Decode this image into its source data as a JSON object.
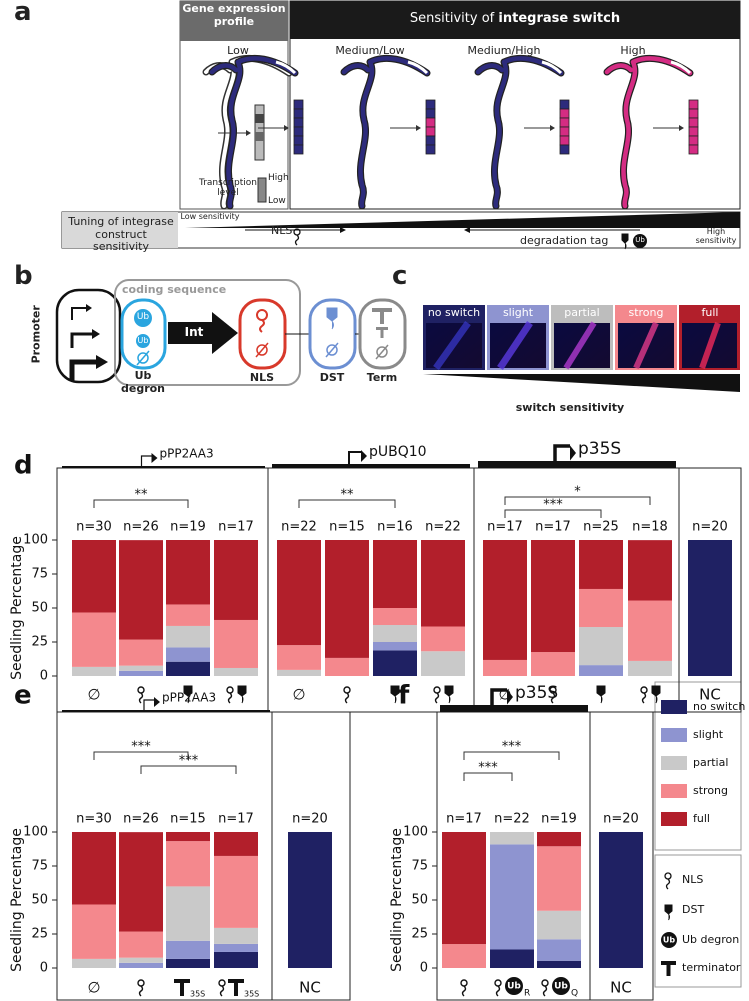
{
  "panel_a": {
    "label": "a",
    "expression_header": "Gene expression profile",
    "sensitivity_header_prefix": "Sensitivity of ",
    "sensitivity_header_bold": "integrase switch",
    "levels": [
      "Low",
      "Medium/Low",
      "Medium/High",
      "High"
    ],
    "transcription_label": "Transcription level",
    "scale_high": "High",
    "scale_low": "Low",
    "tuning_label": "Tuning of integrase construct sensitivity",
    "low_sensitivity": "Low sensitivity",
    "high_sensitivity": "High sensitivity",
    "nls": "NLS",
    "degradation_tag": "degradation tag",
    "ub": "Ub"
  },
  "panel_b": {
    "label": "b",
    "promoter": "Promoter",
    "coding_sequence": "coding sequence",
    "ub_1": "Ub",
    "ub_2": "Ub",
    "int": "Int",
    "ub_degron": "Ub degron",
    "nls": "NLS",
    "dst": "DST",
    "term": "Term"
  },
  "panel_c": {
    "label": "c",
    "classes": [
      "no switch",
      "slight",
      "partial",
      "strong",
      "full"
    ],
    "axis": "switch sensitivity"
  },
  "chart_data": [
    {
      "type": "bar",
      "stacked": true,
      "panel_label": "d",
      "y_label": "Seedling Percentage",
      "groups": [
        "pPP2AA3",
        "pUBQ10",
        "p35S"
      ],
      "categories": [
        "∅",
        null,
        null,
        null,
        "∅",
        null,
        null,
        null,
        "∅",
        null,
        null,
        null,
        "NC"
      ],
      "sample_sizes": [
        "n=30",
        "n=26",
        "n=19",
        "n=17",
        "n=22",
        "n=15",
        "n=16",
        "n=22",
        "n=17",
        "n=17",
        "n=25",
        "n=18",
        "n=20"
      ],
      "significance": [
        "**",
        "**",
        "*",
        "***"
      ],
      "ylim": [
        0,
        100
      ],
      "yticks": [
        0,
        25,
        50,
        75,
        100
      ],
      "series": [
        {
          "color": "#1f2163",
          "values": [
            0,
            0,
            10.5,
            0,
            0,
            0,
            18.8,
            0,
            0,
            0,
            0,
            0,
            100
          ]
        },
        {
          "color": "#8e94d0",
          "values": [
            0,
            3.8,
            10.5,
            0,
            0,
            0,
            6.2,
            0,
            0,
            0,
            8,
            0,
            0
          ]
        },
        {
          "color": "#c9c9c9",
          "values": [
            6.7,
            3.8,
            15.8,
            5.9,
            4.5,
            0,
            12.5,
            18.2,
            0,
            0,
            28,
            11.1,
            0
          ]
        },
        {
          "color": "#f4888d",
          "values": [
            40,
            19.2,
            15.8,
            35.3,
            18.2,
            13.3,
            12.5,
            18.2,
            11.8,
            17.6,
            28,
            44.4,
            0
          ]
        },
        {
          "color": "#b21f2b",
          "values": [
            53.3,
            73.1,
            47.4,
            58.8,
            77.3,
            86.7,
            50,
            63.6,
            88.2,
            82.4,
            36,
            44.4,
            0
          ]
        }
      ]
    },
    {
      "type": "bar",
      "stacked": true,
      "panel_label": "e",
      "y_label": "Seedling Percentage",
      "groups": [
        "pPP2AA3"
      ],
      "icon_subscript": "35S",
      "categories": [
        "∅",
        null,
        null,
        null,
        "NC"
      ],
      "sample_sizes": [
        "n=30",
        "n=26",
        "n=15",
        "n=17",
        "n=20"
      ],
      "significance": [
        "***",
        "***"
      ],
      "ylim": [
        0,
        100
      ],
      "yticks": [
        0,
        25,
        50,
        75,
        100
      ],
      "series": [
        {
          "color": "#1f2163",
          "values": [
            0,
            0,
            6.7,
            11.8,
            100
          ]
        },
        {
          "color": "#8e94d0",
          "values": [
            0,
            3.8,
            13.3,
            5.9,
            0
          ]
        },
        {
          "color": "#c9c9c9",
          "values": [
            6.7,
            3.8,
            40,
            11.8,
            0
          ]
        },
        {
          "color": "#f4888d",
          "values": [
            40,
            19.2,
            33.3,
            52.9,
            0
          ]
        },
        {
          "color": "#b21f2b",
          "values": [
            53.3,
            73.1,
            6.7,
            17.6,
            0
          ]
        }
      ]
    },
    {
      "type": "bar",
      "stacked": true,
      "panel_label": "f",
      "y_label": "Seedling Percentage",
      "groups": [
        "p35S"
      ],
      "icon_ub": "Ub",
      "icon_subscripts": [
        "R",
        "Q"
      ],
      "categories": [
        null,
        null,
        null,
        "NC"
      ],
      "sample_sizes": [
        "n=17",
        "n=22",
        "n=19",
        "n=20"
      ],
      "significance": [
        "***",
        "***"
      ],
      "ylim": [
        0,
        100
      ],
      "yticks": [
        0,
        25,
        50,
        75,
        100
      ],
      "series": [
        {
          "name": "no switch",
          "color": "#1f2163",
          "values": [
            0,
            13.6,
            5.3,
            100
          ]
        },
        {
          "name": "slight",
          "color": "#8e94d0",
          "values": [
            0,
            77.3,
            15.8,
            0
          ]
        },
        {
          "name": "partial",
          "color": "#c9c9c9",
          "values": [
            0,
            9.1,
            21,
            0
          ]
        },
        {
          "name": "strong",
          "color": "#f4888d",
          "values": [
            17.6,
            0,
            47.4,
            0
          ]
        },
        {
          "name": "full",
          "color": "#b21f2b",
          "values": [
            82.4,
            0,
            10.5,
            0
          ]
        }
      ]
    }
  ],
  "icon_legend": {
    "labels": [
      "NLS",
      "DST",
      "Ub degron",
      "terminator"
    ],
    "ub": "Ub"
  }
}
